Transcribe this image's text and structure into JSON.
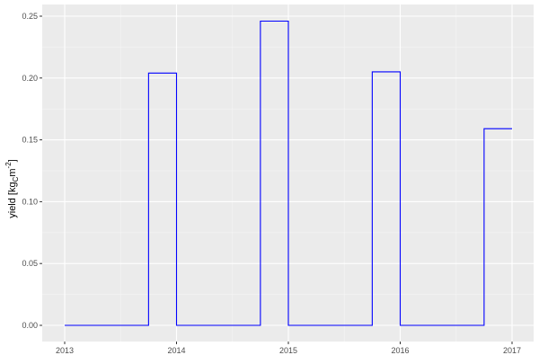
{
  "chart_data": {
    "type": "line",
    "step": true,
    "title": "",
    "xlabel": "",
    "ylabel": {
      "pre": "yield [kg",
      "sub": "C",
      "mid": "m",
      "sup": "-2",
      "post": "]"
    },
    "xlim": [
      2013,
      2017
    ],
    "ylim": [
      0,
      0.25
    ],
    "x_ticks": [
      "2013",
      "2014",
      "2015",
      "2016",
      "2017"
    ],
    "y_ticks": [
      "0.00",
      "0.05",
      "0.10",
      "0.15",
      "0.20",
      "0.25"
    ],
    "grid": true,
    "line_color": "#0000ff",
    "series": [
      {
        "x": [
          2013,
          2013.75,
          2014,
          2014.75,
          2015,
          2015.75,
          2016,
          2016.75,
          2017
        ],
        "y": [
          0,
          0.204,
          0,
          0.246,
          0,
          0.205,
          0,
          0.159,
          0.159
        ]
      }
    ]
  }
}
